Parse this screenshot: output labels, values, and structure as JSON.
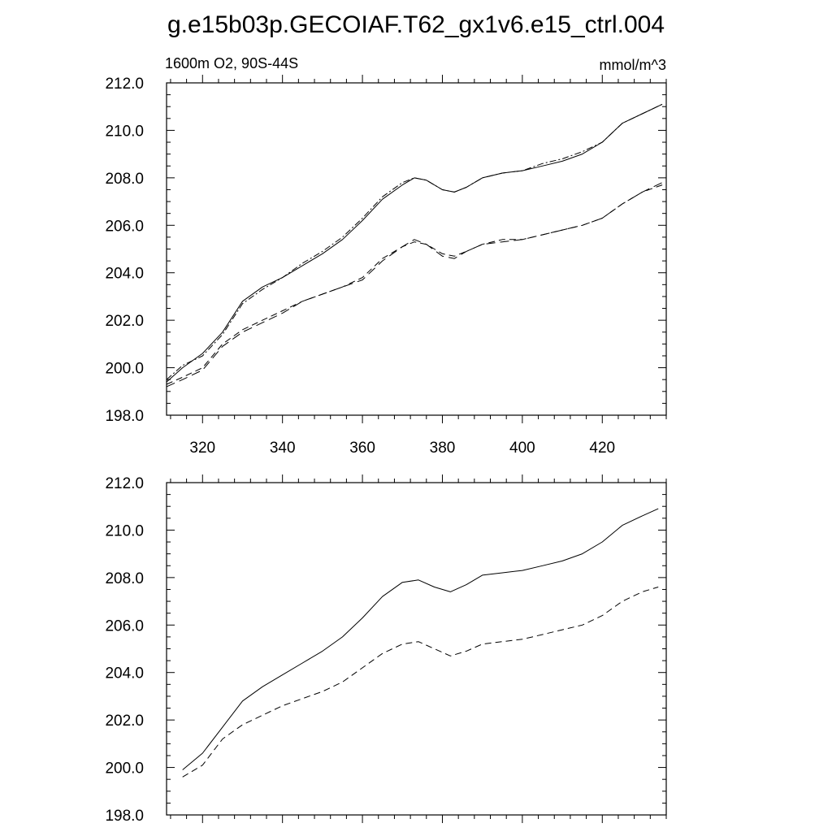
{
  "title": "g.e15b03p.GECOIAF.T62_gx1v6.e15_ctrl.004",
  "chart_data": [
    {
      "type": "line",
      "title": "",
      "subtitle_left": "1600m O2, 90S-44S",
      "subtitle_right": "mmol/m^3",
      "xlim": [
        311,
        436
      ],
      "ylim": [
        198,
        212
      ],
      "xticks": [
        320,
        340,
        360,
        380,
        400,
        420
      ],
      "yticks": [
        198.0,
        200.0,
        202.0,
        204.0,
        206.0,
        208.0,
        210.0,
        212.0
      ],
      "ytick_labels": [
        "198.0",
        "200.0",
        "202.0",
        "204.0",
        "206.0",
        "208.0",
        "210.0",
        "212.0"
      ],
      "xtick_labels": [
        "320",
        "340",
        "360",
        "380",
        "400",
        "420"
      ],
      "show_xtick_labels": true,
      "grid": false,
      "series": [
        {
          "style": "solid",
          "x": [
            311,
            315,
            320,
            325,
            330,
            335,
            340,
            345,
            350,
            355,
            360,
            365,
            370,
            373,
            376,
            380,
            383,
            386,
            390,
            395,
            400,
            405,
            410,
            415,
            420,
            425,
            430,
            435
          ],
          "y": [
            199.4,
            200.0,
            200.6,
            201.5,
            202.8,
            203.4,
            203.8,
            204.3,
            204.8,
            205.4,
            206.2,
            207.1,
            207.7,
            208.0,
            207.9,
            207.5,
            207.4,
            207.6,
            208.0,
            208.2,
            208.3,
            208.5,
            208.7,
            209.0,
            209.5,
            210.3,
            210.7,
            211.1
          ]
        },
        {
          "style": "dashdot",
          "x": [
            311,
            315,
            320,
            325,
            330,
            335,
            340,
            345,
            350,
            355,
            360,
            365,
            370,
            373,
            376,
            380,
            383,
            386,
            390,
            395,
            400,
            405,
            410,
            415,
            420,
            425,
            430,
            435
          ],
          "y": [
            199.5,
            200.1,
            200.5,
            201.4,
            202.7,
            203.3,
            203.8,
            204.4,
            204.9,
            205.5,
            206.3,
            207.2,
            207.8,
            208.0,
            207.9,
            207.5,
            207.4,
            207.6,
            208.0,
            208.2,
            208.3,
            208.6,
            208.8,
            209.1,
            209.5,
            210.3,
            210.7,
            211.1
          ]
        },
        {
          "style": "dashed",
          "x": [
            311,
            315,
            320,
            325,
            330,
            335,
            340,
            345,
            350,
            355,
            360,
            365,
            370,
            373,
            376,
            380,
            383,
            386,
            390,
            395,
            400,
            405,
            410,
            415,
            420,
            425,
            430,
            435
          ],
          "y": [
            199.3,
            199.6,
            200.0,
            201.0,
            201.6,
            202.0,
            202.4,
            202.8,
            203.1,
            203.4,
            203.8,
            204.6,
            205.1,
            205.3,
            205.2,
            204.8,
            204.7,
            204.9,
            205.2,
            205.4,
            205.4,
            205.6,
            205.8,
            206.0,
            206.3,
            206.9,
            207.4,
            207.7
          ]
        },
        {
          "style": "longdash",
          "x": [
            311,
            315,
            320,
            325,
            330,
            335,
            340,
            345,
            350,
            355,
            360,
            365,
            370,
            373,
            376,
            380,
            383,
            386,
            390,
            395,
            400,
            405,
            410,
            415,
            420,
            425,
            430,
            435
          ],
          "y": [
            199.2,
            199.5,
            199.9,
            200.9,
            201.5,
            201.9,
            202.3,
            202.8,
            203.1,
            203.4,
            203.7,
            204.5,
            205.1,
            205.4,
            205.2,
            204.7,
            204.6,
            204.9,
            205.2,
            205.3,
            205.4,
            205.6,
            205.8,
            206.0,
            206.3,
            206.9,
            207.4,
            207.8
          ]
        }
      ]
    },
    {
      "type": "line",
      "title": "",
      "xlim": [
        311,
        436
      ],
      "ylim": [
        198,
        212
      ],
      "xticks": [
        320,
        340,
        360,
        380,
        400,
        420
      ],
      "yticks": [
        198.0,
        200.0,
        202.0,
        204.0,
        206.0,
        208.0,
        210.0,
        212.0
      ],
      "ytick_labels": [
        "198.0",
        "200.0",
        "202.0",
        "204.0",
        "206.0",
        "208.0",
        "210.0",
        "212.0"
      ],
      "show_xtick_labels": false,
      "grid": false,
      "series": [
        {
          "style": "solid",
          "x": [
            315,
            320,
            325,
            330,
            335,
            340,
            345,
            350,
            355,
            360,
            365,
            370,
            374,
            378,
            382,
            386,
            390,
            395,
            400,
            405,
            410,
            415,
            420,
            425,
            430,
            434
          ],
          "y": [
            199.9,
            200.6,
            201.7,
            202.8,
            203.4,
            203.9,
            204.4,
            204.9,
            205.5,
            206.3,
            207.2,
            207.8,
            207.9,
            207.6,
            207.4,
            207.7,
            208.1,
            208.2,
            208.3,
            208.5,
            208.7,
            209.0,
            209.5,
            210.2,
            210.6,
            210.9
          ]
        },
        {
          "style": "dashed",
          "x": [
            315,
            320,
            325,
            330,
            335,
            340,
            345,
            350,
            355,
            360,
            365,
            370,
            374,
            378,
            382,
            386,
            390,
            395,
            400,
            405,
            410,
            415,
            420,
            425,
            430,
            434
          ],
          "y": [
            199.6,
            200.1,
            201.2,
            201.8,
            202.2,
            202.6,
            202.9,
            203.2,
            203.6,
            204.2,
            204.8,
            205.2,
            205.3,
            205.0,
            204.7,
            204.9,
            205.2,
            205.3,
            205.4,
            205.6,
            205.8,
            206.0,
            206.4,
            207.0,
            207.4,
            207.6
          ]
        }
      ]
    }
  ]
}
